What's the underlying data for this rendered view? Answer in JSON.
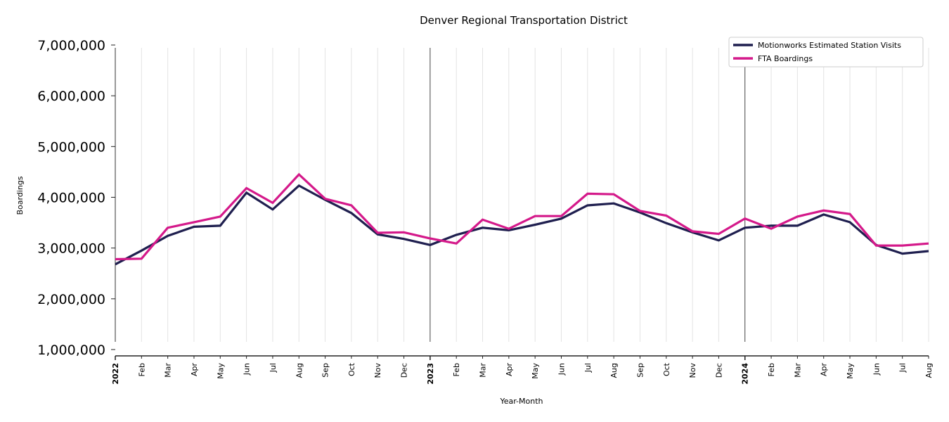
{
  "chart_data": {
    "type": "line",
    "title": "Denver Regional Transportation District",
    "xlabel": "Year-Month",
    "ylabel": "Boardings",
    "ylim": [
      1000000,
      7000000
    ],
    "yticks": [
      1000000,
      2000000,
      3000000,
      4000000,
      5000000,
      6000000,
      7000000
    ],
    "ytick_labels": [
      "1,000,000",
      "2,000,000",
      "3,000,000",
      "4,000,000",
      "5,000,000",
      "6,000,000",
      "7,000,000"
    ],
    "grid": "vertical-monthly",
    "year_separators": [
      "2023",
      "2024"
    ],
    "legend_position": "top-right",
    "x": [
      "2022-01",
      "2022-02",
      "2022-03",
      "2022-04",
      "2022-05",
      "2022-06",
      "2022-07",
      "2022-08",
      "2022-09",
      "2022-10",
      "2022-11",
      "2022-12",
      "2023-01",
      "2023-02",
      "2023-03",
      "2023-04",
      "2023-05",
      "2023-06",
      "2023-07",
      "2023-08",
      "2023-09",
      "2023-10",
      "2023-11",
      "2023-12",
      "2024-01",
      "2024-02",
      "2024-03",
      "2024-04",
      "2024-05",
      "2024-06",
      "2024-07",
      "2024-08"
    ],
    "xtick_labels": [
      "2022",
      "Feb",
      "Mar",
      "Apr",
      "May",
      "Jun",
      "Jul",
      "Aug",
      "Sep",
      "Oct",
      "Nov",
      "Dec",
      "2023",
      "Feb",
      "Mar",
      "Apr",
      "May",
      "Jun",
      "Jul",
      "Aug",
      "Sep",
      "Oct",
      "Nov",
      "Dec",
      "2024",
      "Feb",
      "Mar",
      "Apr",
      "May",
      "Jun",
      "Jul",
      "Aug"
    ],
    "series": [
      {
        "name": "Motionworks Estimated Station Visits",
        "color": "#1f1f4f",
        "values": [
          2680000,
          2950000,
          3240000,
          3420000,
          3440000,
          4090000,
          3760000,
          4230000,
          3950000,
          3690000,
          3270000,
          3180000,
          3060000,
          3260000,
          3400000,
          3350000,
          3460000,
          3580000,
          3840000,
          3880000,
          3700000,
          3490000,
          3310000,
          3150000,
          3400000,
          3440000,
          3440000,
          3660000,
          3510000,
          3060000,
          2890000,
          2940000
        ]
      },
      {
        "name": "FTA Boardings",
        "color": "#d4198a",
        "values": [
          2780000,
          2790000,
          3400000,
          3510000,
          3620000,
          4180000,
          3890000,
          4450000,
          3970000,
          3840000,
          3300000,
          3310000,
          3190000,
          3090000,
          3560000,
          3380000,
          3630000,
          3630000,
          4070000,
          4060000,
          3730000,
          3640000,
          3330000,
          3280000,
          3580000,
          3380000,
          3620000,
          3740000,
          3670000,
          3050000,
          3050000,
          3090000
        ]
      }
    ]
  }
}
